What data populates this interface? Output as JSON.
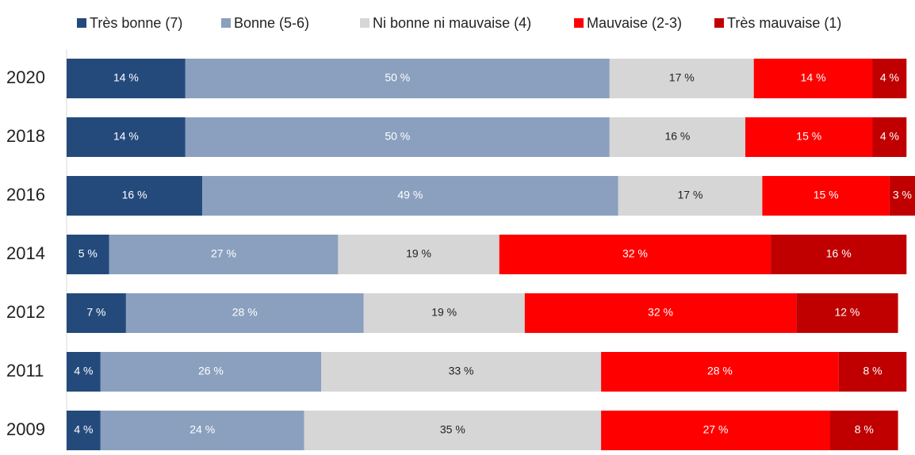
{
  "chart_data": {
    "type": "stacked-bar-horizontal",
    "categories": [
      "2020",
      "2018",
      "2016",
      "2014",
      "2012",
      "2011",
      "2009"
    ],
    "xlim": [
      0,
      100
    ],
    "series": [
      {
        "name": "Très bonne (7)",
        "color": "#244a7c",
        "label_color": "#ffffff",
        "values": [
          14,
          14,
          16,
          5,
          7,
          4,
          4
        ],
        "value_labels": [
          "14 %",
          "14 %",
          "16 %",
          "5 %",
          "7 %",
          "4 %",
          "4 %"
        ]
      },
      {
        "name": "Bonne (5-6)",
        "color": "#8aa0be",
        "label_color": "#ffffff",
        "values": [
          50,
          50,
          49,
          27,
          28,
          26,
          24
        ],
        "value_labels": [
          "50 %",
          "50 %",
          "49 %",
          "27 %",
          "28 %",
          "26 %",
          "24 %"
        ]
      },
      {
        "name": "Ni bonne ni mauvaise (4)",
        "color": "#d6d6d6",
        "label_color": "#222222",
        "values": [
          17,
          16,
          17,
          19,
          19,
          33,
          35
        ],
        "value_labels": [
          "17 %",
          "16 %",
          "17 %",
          "19 %",
          "19 %",
          "33 %",
          "35 %"
        ]
      },
      {
        "name": "Mauvaise (2-3)",
        "color": "#ff0000",
        "label_color": "#ffffff",
        "values": [
          14,
          15,
          15,
          32,
          32,
          28,
          27
        ],
        "value_labels": [
          "14 %",
          "15 %",
          "15 %",
          "32 %",
          "32 %",
          "28 %",
          "27 %"
        ]
      },
      {
        "name": "Très mauvaise (1)",
        "color": "#c00000",
        "label_color": "#ffffff",
        "values": [
          4,
          4,
          3,
          16,
          12,
          8,
          8
        ],
        "value_labels": [
          "4 %",
          "4 %",
          "3 %",
          "16 %",
          "12 %",
          "8 %",
          "8 %"
        ]
      }
    ]
  }
}
